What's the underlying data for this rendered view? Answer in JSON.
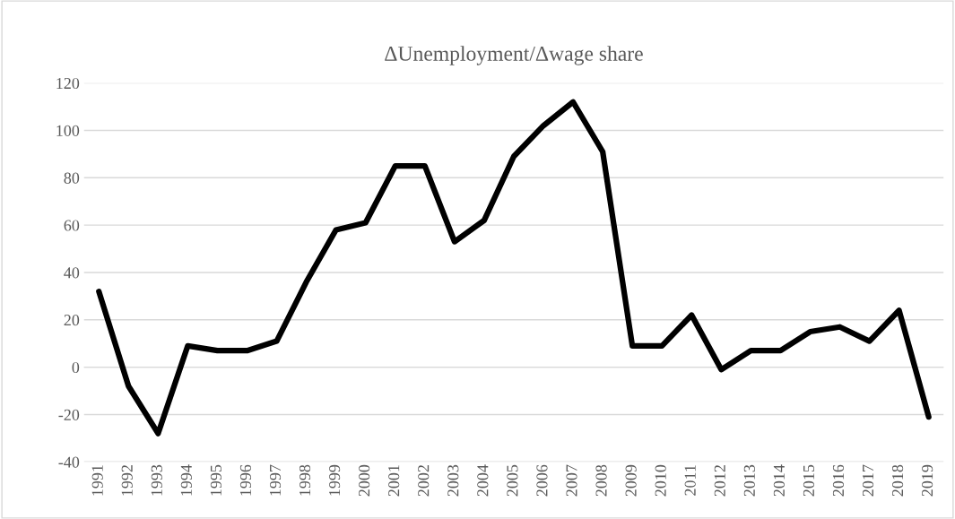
{
  "chart_data": {
    "type": "line",
    "title": "ΔUnemployment/Δwage share",
    "categories": [
      "1991",
      "1992",
      "1993",
      "1994",
      "1995",
      "1996",
      "1997",
      "1998",
      "1999",
      "2000",
      "2001",
      "2002",
      "2003",
      "2004",
      "2005",
      "2006",
      "2007",
      "2008",
      "2009",
      "2010",
      "2011",
      "2012",
      "2013",
      "2014",
      "2015",
      "2016",
      "2017",
      "2018",
      "2019"
    ],
    "series": [
      {
        "color": "#000000",
        "values": [
          32,
          -8,
          -28,
          9,
          7,
          7,
          11,
          36,
          58,
          61,
          85,
          85,
          53,
          62,
          89,
          102,
          112,
          91,
          9,
          9,
          22,
          -1,
          7,
          7,
          15,
          17,
          11,
          24,
          -21
        ]
      }
    ],
    "ylim": [
      -40,
      120
    ],
    "yticks": [
      -40,
      -20,
      0,
      20,
      40,
      60,
      80,
      100,
      120
    ],
    "grid": "y",
    "marker": "none",
    "line_style": "solid",
    "legend": false
  }
}
